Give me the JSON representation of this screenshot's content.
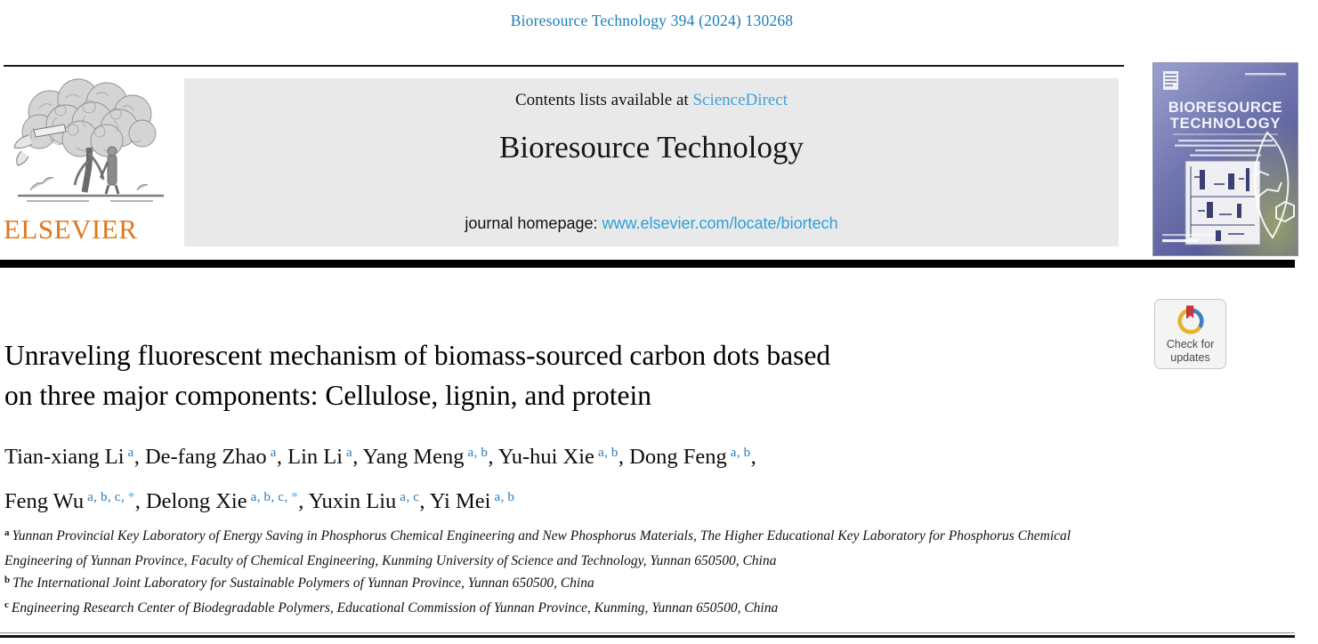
{
  "page": {
    "citation": "Bioresource Technology 394 (2024) 130268"
  },
  "publisher": {
    "wordmark": "ELSEVIER",
    "logo_icon": "elsevier-tree-logo"
  },
  "banner": {
    "contents_prefix": "Contents lists available at ",
    "sciencedirect_label": "ScienceDirect",
    "journal_title": "Bioresource Technology",
    "homepage_prefix": "journal homepage: ",
    "homepage_url": "www.elsevier.com/locate/biortech"
  },
  "cover": {
    "title_line1": "BIORESOURCE",
    "title_line2": "TECHNOLOGY"
  },
  "badge": {
    "line1": "Check for",
    "line2": "updates"
  },
  "article": {
    "title_line1": "Unraveling fluorescent mechanism of biomass-sourced carbon dots based",
    "title_line2": "on three major components: Cellulose, lignin, and protein",
    "authors": [
      {
        "name": "Tian-xiang Li",
        "sup": "a",
        "sep": ", ",
        "break_after": false
      },
      {
        "name": "De-fang Zhao",
        "sup": "a",
        "sep": ", ",
        "break_after": false
      },
      {
        "name": "Lin Li",
        "sup": "a",
        "sep": ", ",
        "break_after": false
      },
      {
        "name": "Yang Meng",
        "sup": "a,b",
        "sep": ", ",
        "break_after": false
      },
      {
        "name": "Yu-hui Xie",
        "sup": "a,b",
        "sep": ", ",
        "break_after": false
      },
      {
        "name": "Dong Feng",
        "sup": "a,b",
        "sep": ",",
        "break_after": true
      },
      {
        "name": "Feng Wu",
        "sup": "a,b,c,*",
        "sep": ", ",
        "break_after": false
      },
      {
        "name": "Delong Xie",
        "sup": "a,b,c,*",
        "sep": ", ",
        "break_after": false
      },
      {
        "name": "Yuxin Liu",
        "sup": "a,c",
        "sep": ", ",
        "break_after": false
      },
      {
        "name": "Yi Mei",
        "sup": "a,b",
        "sep": "",
        "break_after": false
      }
    ],
    "affiliations": [
      {
        "marker": "a",
        "text": "Yunnan Provincial Key Laboratory of Energy Saving in Phosphorus Chemical Engineering and New Phosphorus Materials, The Higher Educational Key Laboratory for Phosphorus Chemical Engineering of Yunnan Province, Faculty of Chemical Engineering, Kunming University of Science and Technology, Yunnan 650500, China"
      },
      {
        "marker": "b",
        "text": "The International Joint Laboratory for Sustainable Polymers of Yunnan Province, Yunnan 650500, China"
      },
      {
        "marker": "c",
        "text": "Engineering Research Center of Biodegradable Polymers, Educational Commission of Yunnan Province, Kunming, Yunnan 650500, China"
      }
    ]
  },
  "colors": {
    "citation_blue": "#1b7fb4",
    "sciencedirect_blue": "#3fa3dc",
    "homepage_link_blue": "#2da0da",
    "superscript_blue": "#2a7ab8",
    "asterisk_blue": "#52aee2",
    "elsevier_orange": "#e2761b",
    "banner_gray": "#e9e9e9",
    "rule_black": "#000000"
  }
}
